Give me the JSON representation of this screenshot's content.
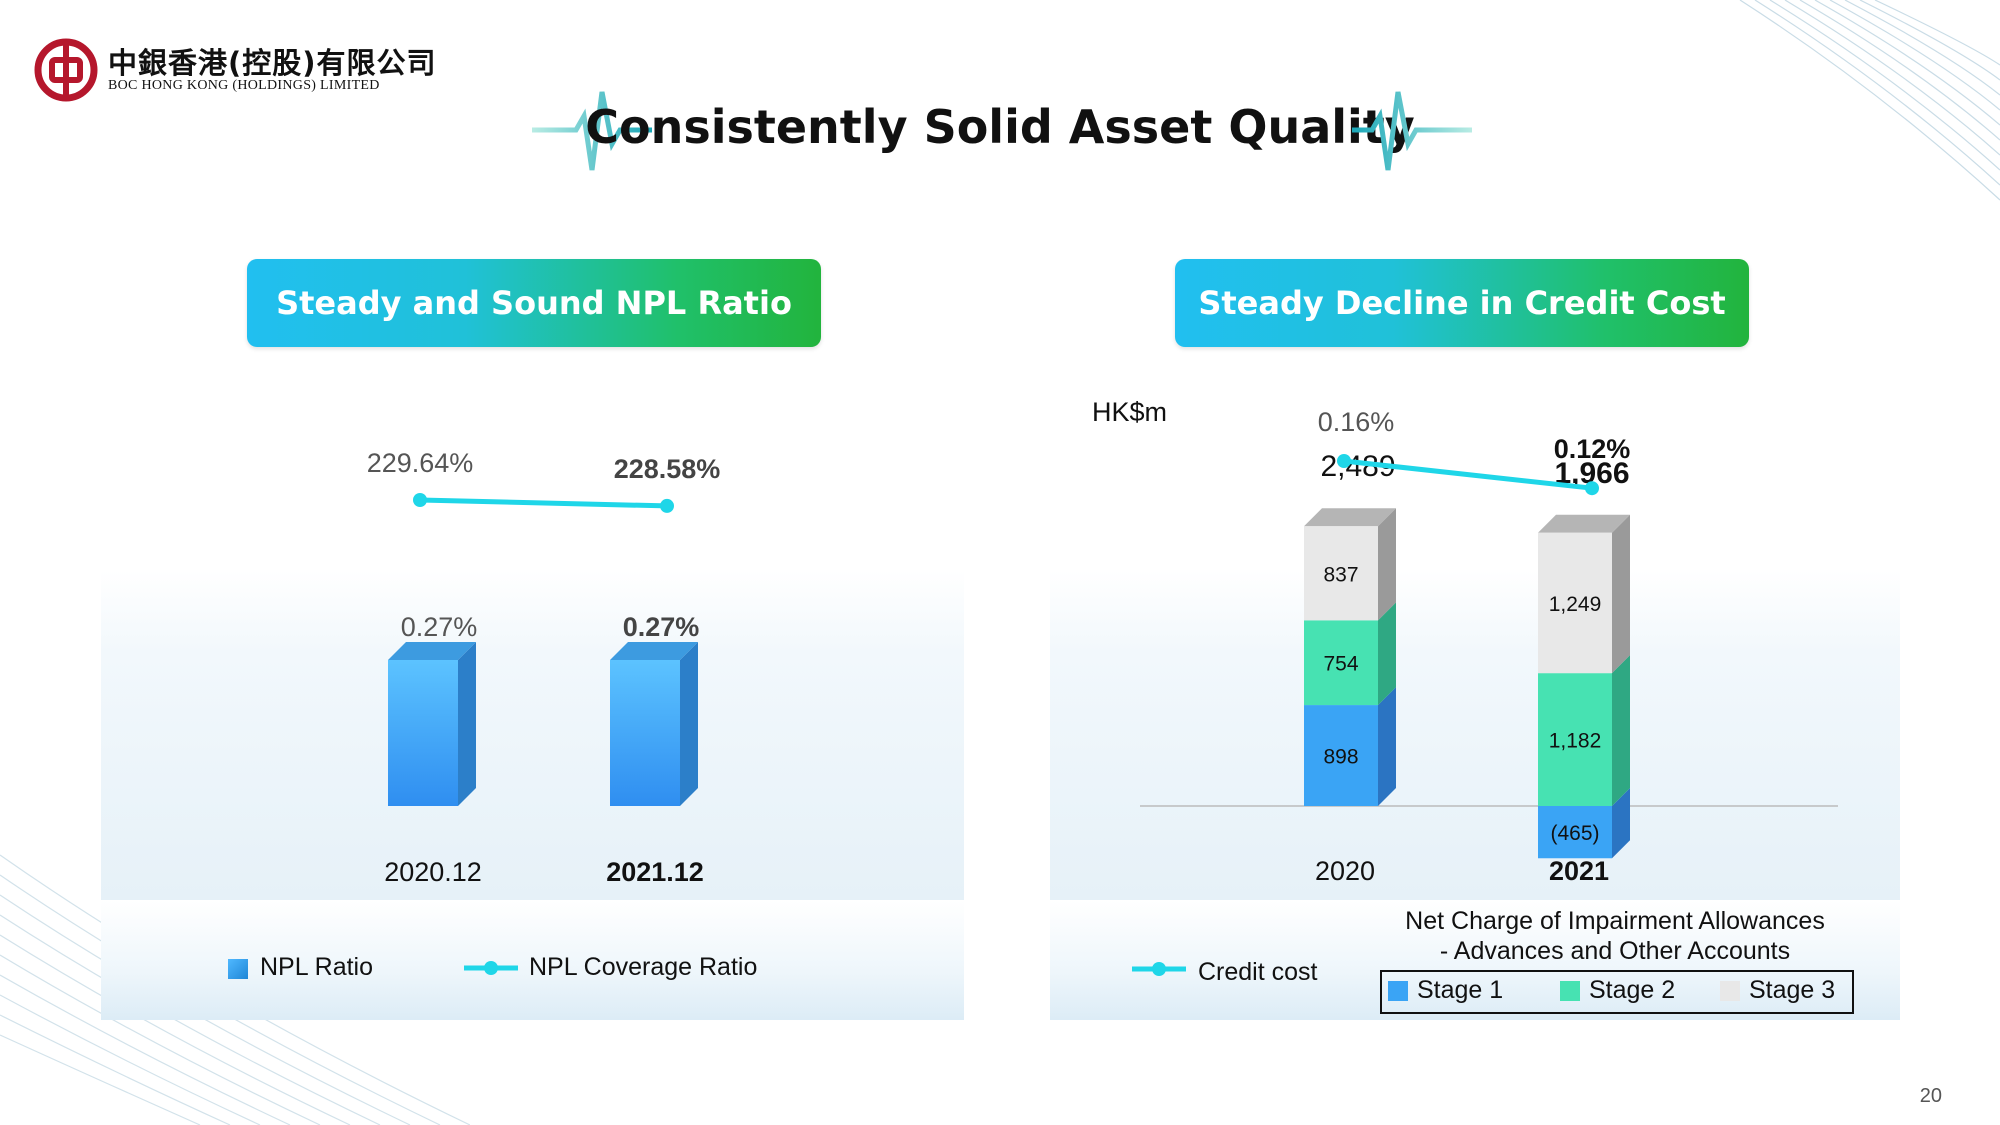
{
  "header": {
    "company_cn": "中銀香港(控股)有限公司",
    "company_en": "BOC HONG KONG (HOLDINGS) LIMITED",
    "title": "Consistently Solid Asset Quality"
  },
  "left_panel": {
    "banner": "Steady and Sound NPL Ratio"
  },
  "right_panel": {
    "banner": "Steady Decline in Credit Cost",
    "unit_label": "HK$m",
    "bar_legend_title_line1": "Net Charge of Impairment Allowances",
    "bar_legend_title_line2": "- Advances and Other Accounts"
  },
  "page_number": "20",
  "colors": {
    "stage1": "#3aa4f5",
    "stage2": "#47e2b2",
    "stage3": "#e8e8e8",
    "line": "#1fd6e8",
    "npl_bar": "#3aa8f6"
  },
  "chart_data": [
    {
      "type": "bar",
      "categories": [
        "2020.12",
        "2021.12"
      ],
      "series": [
        {
          "name": "NPL Ratio",
          "kind": "bar",
          "values": [
            0.27,
            0.27
          ],
          "labels": [
            "0.27%",
            "0.27%"
          ]
        },
        {
          "name": "NPL Coverage Ratio",
          "kind": "line",
          "values": [
            229.64,
            228.58
          ],
          "labels": [
            "229.64%",
            "228.58%"
          ]
        }
      ],
      "legend": [
        "NPL Ratio",
        "NPL Coverage Ratio"
      ],
      "legend_position": "bottom"
    },
    {
      "type": "bar",
      "stacked": true,
      "unit": "HK$m",
      "categories": [
        "2020",
        "2021"
      ],
      "series": [
        {
          "name": "Stage 1",
          "values": [
            898,
            -465
          ],
          "labels": [
            "898",
            "(465)"
          ]
        },
        {
          "name": "Stage 2",
          "values": [
            754,
            1182
          ],
          "labels": [
            "754",
            "1,182"
          ]
        },
        {
          "name": "Stage 3",
          "values": [
            837,
            1249
          ],
          "labels": [
            "837",
            "1,249"
          ]
        },
        {
          "name": "Credit cost",
          "kind": "line",
          "values": [
            0.16,
            0.12
          ],
          "labels": [
            "0.16%",
            "0.12%"
          ]
        }
      ],
      "totals": [
        2489,
        1966
      ],
      "total_labels": [
        "2,489",
        "1,966"
      ],
      "legend": [
        "Credit cost",
        "Stage 1",
        "Stage 2",
        "Stage 3"
      ],
      "legend_position": "bottom"
    }
  ]
}
